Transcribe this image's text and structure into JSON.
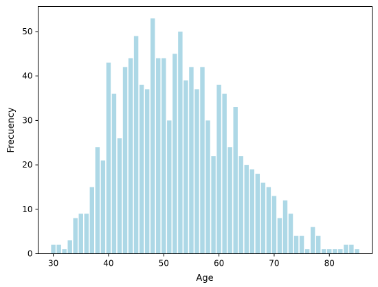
{
  "chart_data": {
    "type": "bar",
    "title": "",
    "xlabel": "Age",
    "ylabel": "Frecuency",
    "x": [
      30,
      31,
      32,
      33,
      34,
      35,
      36,
      37,
      38,
      39,
      40,
      41,
      42,
      43,
      44,
      45,
      46,
      47,
      48,
      49,
      50,
      51,
      52,
      53,
      54,
      55,
      56,
      57,
      58,
      59,
      60,
      61,
      62,
      63,
      64,
      65,
      66,
      67,
      68,
      69,
      70,
      71,
      72,
      73,
      74,
      75,
      76,
      77,
      78,
      79,
      80,
      81,
      82,
      83,
      84,
      85
    ],
    "values": [
      2,
      2,
      1,
      3,
      8,
      9,
      9,
      15,
      24,
      21,
      43,
      36,
      26,
      42,
      44,
      49,
      38,
      37,
      53,
      44,
      44,
      30,
      45,
      50,
      39,
      42,
      37,
      42,
      30,
      22,
      38,
      36,
      24,
      33,
      22,
      20,
      19,
      18,
      16,
      15,
      13,
      8,
      12,
      9,
      4,
      4,
      1,
      6,
      4,
      1,
      1,
      1,
      1,
      2,
      2,
      1
    ],
    "xlim": [
      27.25,
      87.75
    ],
    "ylim": [
      0,
      55.65
    ],
    "xticks": [
      30,
      40,
      50,
      60,
      70,
      80
    ],
    "yticks": [
      0,
      10,
      20,
      30,
      40,
      50
    ],
    "grid": false,
    "bar_color": "#add8e6"
  }
}
